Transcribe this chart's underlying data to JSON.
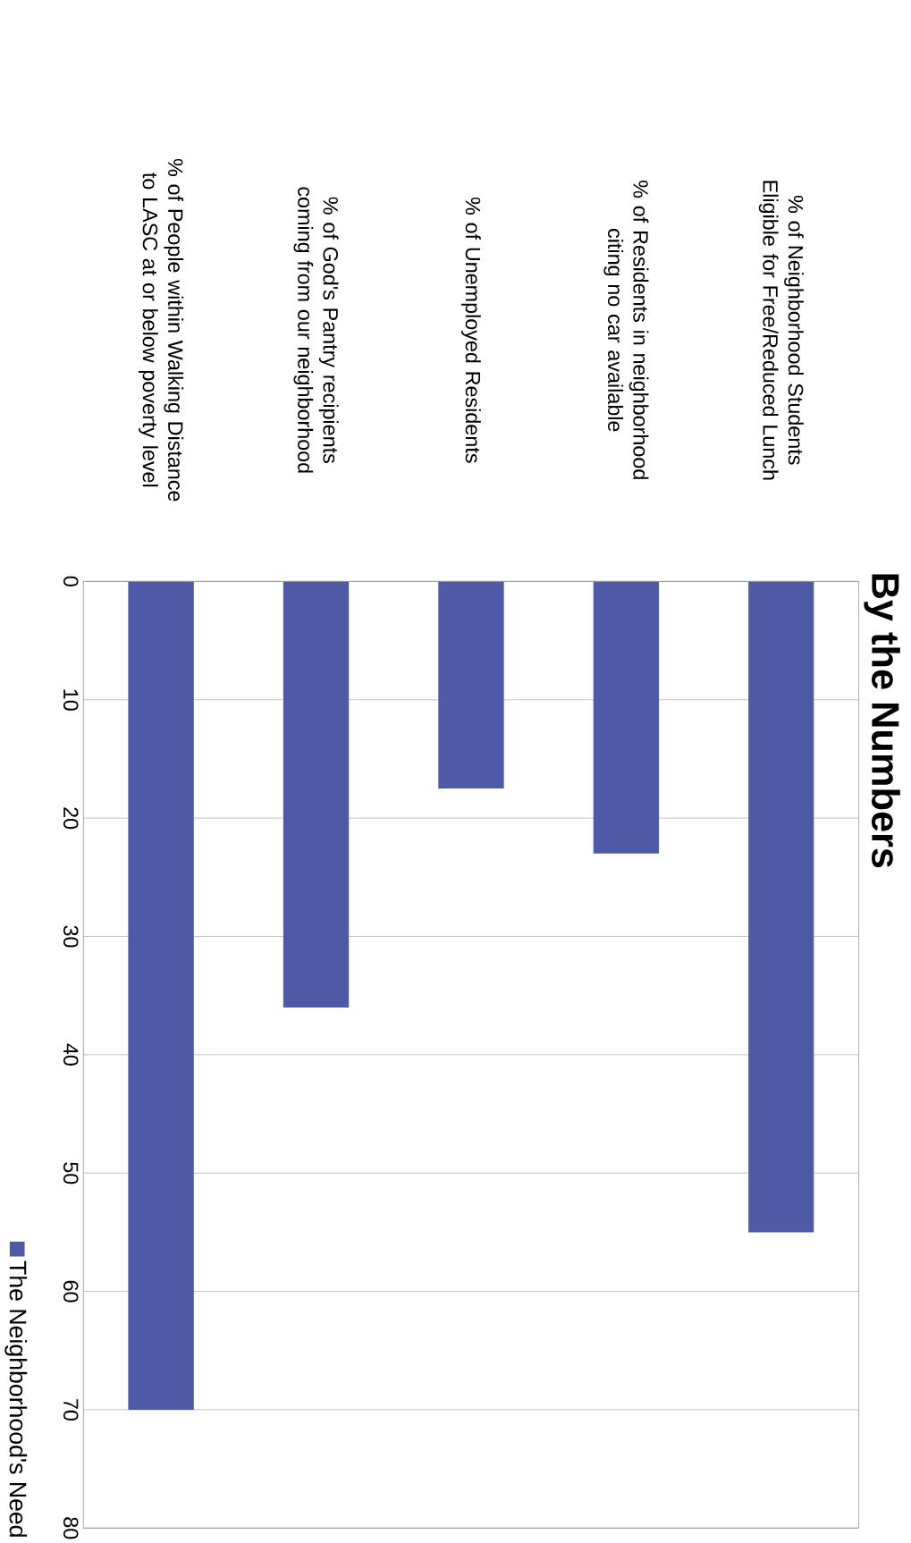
{
  "chart_data": {
    "type": "bar",
    "title": "By the Numbers",
    "categories": [
      "% of People within Walking Distance to LASC at or below poverty level",
      "% of God's Pantry recipients coming from our neighborhood",
      "% of Unemployed Residents",
      "% of Residents in neighborhood citing no car available",
      "% of Neighborhood Students Eligible for Free/Reduced Lunch"
    ],
    "series": [
      {
        "name": "The Neighborhood's Need",
        "color": "#4f5aa6",
        "values": [
          70,
          36,
          17.5,
          23,
          55
        ]
      }
    ],
    "ylim": [
      80,
      0
    ],
    "yticks": [
      0,
      10,
      20,
      30,
      40,
      50,
      60,
      70,
      80
    ],
    "grid": "y",
    "legend": "bottom left"
  }
}
